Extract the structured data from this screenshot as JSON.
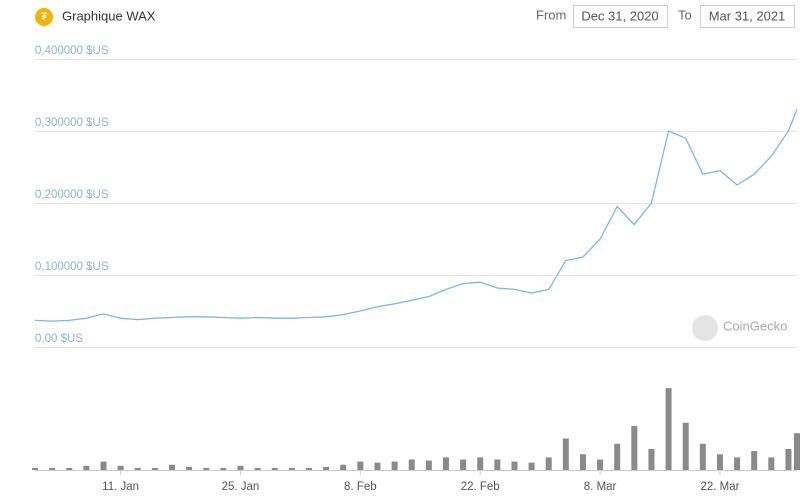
{
  "header": {
    "title": "Graphique WAX",
    "from_label": "From",
    "from_date": "Dec 31, 2020",
    "to_label": "To",
    "to_date": "Mar 31, 2021"
  },
  "watermark": "CoinGecko",
  "chart_data": {
    "type": "line",
    "x": [
      "2021-01-01",
      "2021-01-03",
      "2021-01-05",
      "2021-01-07",
      "2021-01-09",
      "2021-01-11",
      "2021-01-13",
      "2021-01-15",
      "2021-01-17",
      "2021-01-19",
      "2021-01-21",
      "2021-01-23",
      "2021-01-25",
      "2021-01-27",
      "2021-01-29",
      "2021-01-31",
      "2021-02-02",
      "2021-02-04",
      "2021-02-06",
      "2021-02-08",
      "2021-02-10",
      "2021-02-12",
      "2021-02-14",
      "2021-02-16",
      "2021-02-18",
      "2021-02-20",
      "2021-02-22",
      "2021-02-24",
      "2021-02-26",
      "2021-02-28",
      "2021-03-02",
      "2021-03-04",
      "2021-03-06",
      "2021-03-08",
      "2021-03-10",
      "2021-03-12",
      "2021-03-14",
      "2021-03-16",
      "2021-03-18",
      "2021-03-20",
      "2021-03-22",
      "2021-03-24",
      "2021-03-26",
      "2021-03-28",
      "2021-03-30",
      "2021-03-31"
    ],
    "series": [
      {
        "name": "Price",
        "color": "#7cb5ec",
        "values": [
          0.037,
          0.036,
          0.037,
          0.04,
          0.046,
          0.04,
          0.038,
          0.04,
          0.041,
          0.042,
          0.042,
          0.041,
          0.04,
          0.041,
          0.04,
          0.04,
          0.041,
          0.042,
          0.045,
          0.05,
          0.056,
          0.06,
          0.065,
          0.07,
          0.08,
          0.088,
          0.09,
          0.082,
          0.08,
          0.075,
          0.08,
          0.12,
          0.125,
          0.15,
          0.195,
          0.17,
          0.2,
          0.3,
          0.29,
          0.24,
          0.245,
          0.225,
          0.24,
          0.265,
          0.3,
          0.33
        ]
      },
      {
        "name": "Volume",
        "color": "#8a8a8a",
        "axis": "y2",
        "values": [
          2,
          2,
          2,
          4,
          8,
          4,
          2,
          2,
          5,
          3,
          2,
          2,
          4,
          2,
          2,
          2,
          2,
          3,
          5,
          8,
          7,
          8,
          10,
          9,
          12,
          10,
          12,
          10,
          8,
          7,
          12,
          30,
          15,
          10,
          25,
          42,
          20,
          78,
          45,
          25,
          15,
          12,
          18,
          12,
          20,
          35
        ]
      }
    ],
    "xlim": [
      "2021-01-01",
      "2021-03-31"
    ],
    "xticks": [
      {
        "value": "2021-01-11",
        "label": "11. Jan"
      },
      {
        "value": "2021-01-25",
        "label": "25. Jan"
      },
      {
        "value": "2021-02-08",
        "label": "8. Feb"
      },
      {
        "value": "2021-02-22",
        "label": "22. Feb"
      },
      {
        "value": "2021-03-08",
        "label": "8. Mar"
      },
      {
        "value": "2021-03-22",
        "label": "22. Mar"
      }
    ],
    "ylim": [
      0,
      0.4
    ],
    "yticks": [
      {
        "value": 0,
        "label": "0,00 $US"
      },
      {
        "value": 0.1,
        "label": "0,100000 $US"
      },
      {
        "value": 0.2,
        "label": "0,200000 $US"
      },
      {
        "value": 0.3,
        "label": "0,300000 $US"
      },
      {
        "value": 0.4,
        "label": "0,400000 $US"
      }
    ],
    "y2lim": [
      0,
      100
    ],
    "grid": true
  }
}
